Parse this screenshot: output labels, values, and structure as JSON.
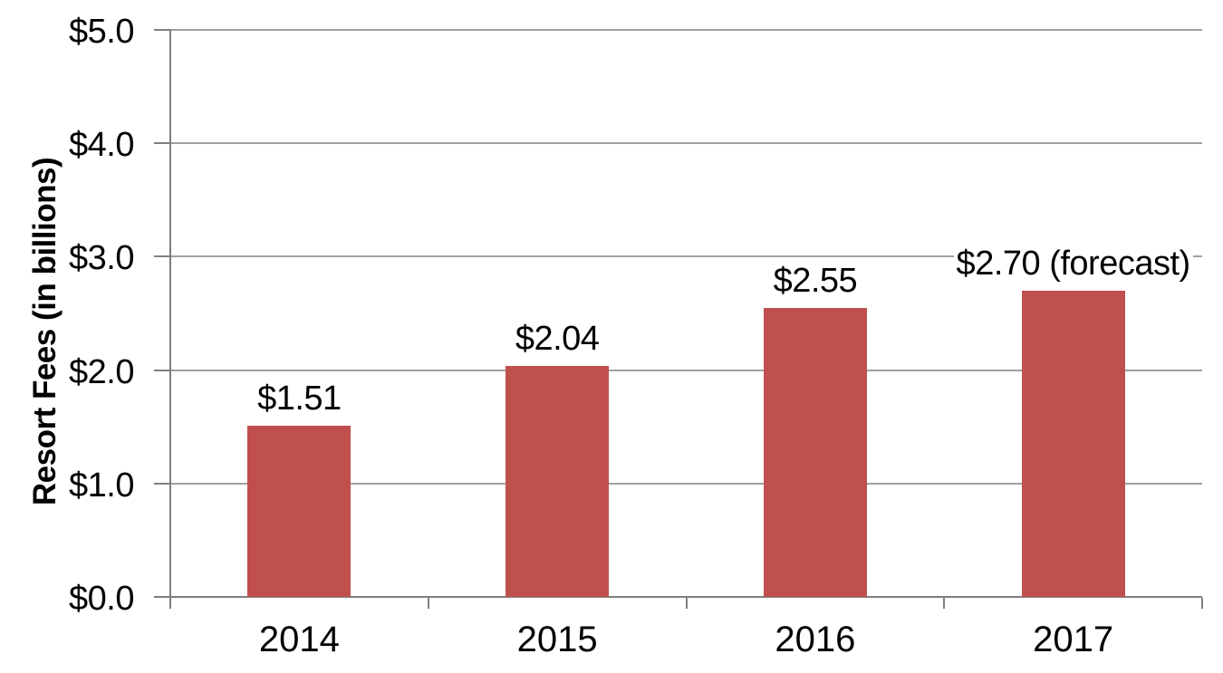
{
  "chart_data": {
    "type": "bar",
    "title": "",
    "categories": [
      "2014",
      "2015",
      "2016",
      "2017"
    ],
    "values": [
      1.51,
      2.04,
      2.55,
      2.7
    ],
    "bar_labels": [
      "$1.51",
      "$2.04",
      "$2.55",
      "$2.70 (forecast)"
    ],
    "xlabel": "",
    "ylabel": "Resort Fees (in billions)",
    "ylim": [
      0,
      5
    ],
    "ytick_labels": [
      "$0.0",
      "$1.0",
      "$2.0",
      "$3.0",
      "$4.0",
      "$5.0"
    ],
    "grid": true,
    "legend": false,
    "colors": {
      "bar": "#C0504D",
      "gridline": "#A0A0A0",
      "axis": "#7F7F7F",
      "text": "#000000",
      "background": "#FFFFFF",
      "label_background": "#FFFFFF"
    }
  }
}
